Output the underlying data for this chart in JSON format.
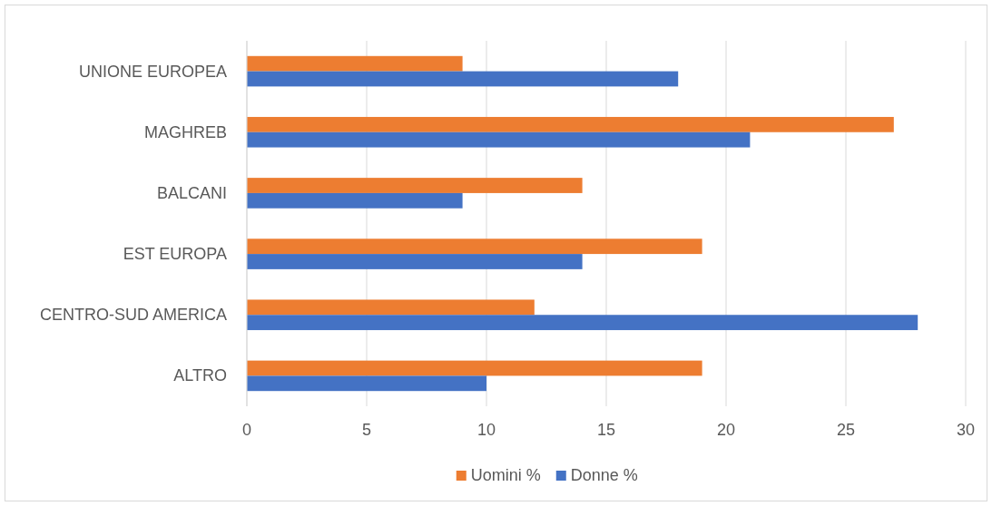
{
  "chart_data": {
    "type": "bar",
    "orientation": "horizontal",
    "categories": [
      "UNIONE EUROPEA",
      "MAGHREB",
      "BALCANI",
      "EST EUROPA",
      "CENTRO-SUD AMERICA",
      "ALTRO"
    ],
    "series": [
      {
        "name": "Uomini %",
        "color": "#ed7d31",
        "values": [
          9,
          27,
          14,
          19,
          12,
          19
        ]
      },
      {
        "name": "Donne %",
        "color": "#4472c4",
        "values": [
          18,
          21,
          9,
          14,
          28,
          10
        ]
      }
    ],
    "xlim": [
      0,
      30
    ],
    "xticks": [
      0,
      5,
      10,
      15,
      20,
      25,
      30
    ],
    "grid": "x",
    "legend": "bottom"
  }
}
